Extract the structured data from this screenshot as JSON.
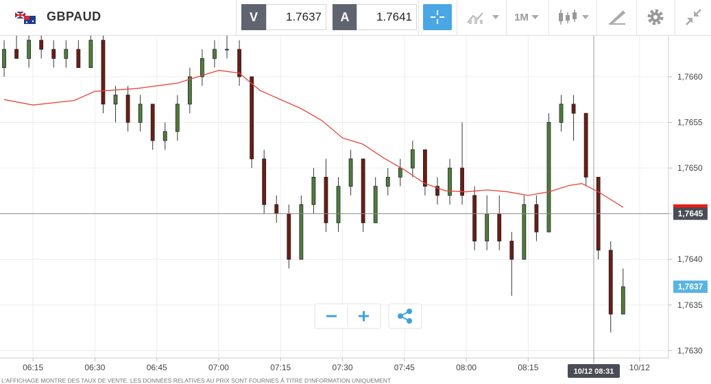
{
  "header": {
    "symbol": "GBPAUD",
    "bid_label": "V",
    "bid": "1.7637",
    "ask_label": "A",
    "ask": "1.7641",
    "timeframe": "1M"
  },
  "chart_data": {
    "type": "candlestick",
    "x": [
      "06:08",
      "06:11",
      "06:14",
      "06:17",
      "06:20",
      "06:23",
      "06:26",
      "06:29",
      "06:32",
      "06:35",
      "06:38",
      "06:41",
      "06:44",
      "06:47",
      "06:50",
      "06:53",
      "06:56",
      "06:59",
      "07:02",
      "07:05",
      "07:08",
      "07:11",
      "07:14",
      "07:17",
      "07:20",
      "07:23",
      "07:26",
      "07:29",
      "07:32",
      "07:35",
      "07:38",
      "07:41",
      "07:44",
      "07:47",
      "07:50",
      "07:53",
      "07:56",
      "07:59",
      "08:02",
      "08:05",
      "08:08",
      "08:11",
      "08:14",
      "08:17",
      "08:20",
      "08:23",
      "08:26",
      "08:29",
      "08:32",
      "08:35",
      "08:38"
    ],
    "open": [
      1.7661,
      1.7663,
      1.7662,
      1.7664,
      1.7663,
      1.7662,
      1.7663,
      1.7661,
      1.7664,
      1.7657,
      1.7658,
      1.7655,
      1.7657,
      1.7653,
      1.7654,
      1.7657,
      1.766,
      1.7662,
      1.7663,
      1.7663,
      1.766,
      1.7651,
      1.7646,
      1.7645,
      1.764,
      1.7646,
      1.7649,
      1.7644,
      1.7648,
      1.7651,
      1.7644,
      1.7648,
      1.7649,
      1.765,
      1.7652,
      1.7648,
      1.7647,
      1.765,
      1.7647,
      1.7642,
      1.7645,
      1.7642,
      1.764,
      1.7646,
      1.7643,
      1.7655,
      1.7657,
      1.7656,
      1.7649,
      1.7641,
      1.7634
    ],
    "high": [
      1.7664,
      1.7665,
      1.7665,
      1.7665,
      1.7664,
      1.7664,
      1.7664,
      1.7665,
      1.7665,
      1.7659,
      1.7659,
      1.7658,
      1.7657,
      1.7655,
      1.7658,
      1.7661,
      1.7663,
      1.7664,
      1.7665,
      1.7664,
      1.766,
      1.7652,
      1.7647,
      1.7646,
      1.7647,
      1.765,
      1.7651,
      1.7649,
      1.7652,
      1.7651,
      1.7649,
      1.765,
      1.7651,
      1.7653,
      1.7652,
      1.7649,
      1.7651,
      1.7655,
      1.7648,
      1.7647,
      1.7647,
      1.7643,
      1.7647,
      1.7647,
      1.7656,
      1.7658,
      1.7658,
      1.7656,
      1.7649,
      1.7642,
      1.7639
    ],
    "low": [
      1.766,
      1.7662,
      1.7661,
      1.7662,
      1.7661,
      1.7661,
      1.7661,
      1.7661,
      1.7656,
      1.7655,
      1.7654,
      1.7654,
      1.7652,
      1.7652,
      1.7653,
      1.7656,
      1.7659,
      1.7661,
      1.7662,
      1.7659,
      1.765,
      1.7645,
      1.7644,
      1.7639,
      1.764,
      1.7645,
      1.7643,
      1.7643,
      1.7647,
      1.7643,
      1.7644,
      1.7647,
      1.7648,
      1.7649,
      1.7647,
      1.7646,
      1.7646,
      1.7646,
      1.7641,
      1.7641,
      1.7641,
      1.7636,
      1.764,
      1.7642,
      1.7643,
      1.7654,
      1.7653,
      1.7648,
      1.764,
      1.7632,
      1.7634
    ],
    "close": [
      1.7663,
      1.7662,
      1.7664,
      1.7663,
      1.7662,
      1.7663,
      1.7661,
      1.7664,
      1.7657,
      1.7658,
      1.7655,
      1.7657,
      1.7653,
      1.7654,
      1.7657,
      1.766,
      1.7662,
      1.7663,
      1.7663,
      1.766,
      1.7651,
      1.7646,
      1.7645,
      1.764,
      1.7646,
      1.7649,
      1.7644,
      1.7648,
      1.7651,
      1.7644,
      1.7648,
      1.7649,
      1.765,
      1.7652,
      1.7648,
      1.7647,
      1.765,
      1.7647,
      1.7642,
      1.7645,
      1.7642,
      1.764,
      1.7646,
      1.7643,
      1.7655,
      1.7657,
      1.7656,
      1.7649,
      1.7641,
      1.7634,
      1.7637
    ],
    "up_color": "#4f7d3c",
    "down_color": "#6b1d16",
    "moving_average": {
      "color": "#e8453c",
      "x": [
        "06:08",
        "06:15",
        "06:25",
        "06:30",
        "06:40",
        "06:50",
        "06:55",
        "07:00",
        "07:05",
        "07:10",
        "07:20",
        "07:25",
        "07:30",
        "07:35",
        "07:40",
        "07:45",
        "07:50",
        "07:55",
        "08:00",
        "08:05",
        "08:10",
        "08:15",
        "08:20",
        "08:25",
        "08:28",
        "08:32",
        "08:38"
      ],
      "values": [
        1.76575,
        1.76569,
        1.76574,
        1.76584,
        1.76587,
        1.76593,
        1.766,
        1.76607,
        1.76604,
        1.76585,
        1.76565,
        1.76552,
        1.76533,
        1.76526,
        1.76511,
        1.76498,
        1.76483,
        1.76475,
        1.76474,
        1.76476,
        1.76474,
        1.7647,
        1.76474,
        1.76481,
        1.76483,
        1.76474,
        1.76457
      ]
    },
    "xlim": [
      "06:07",
      "08:49"
    ],
    "xticks": [
      "06:15",
      "06:30",
      "06:45",
      "07:00",
      "07:15",
      "07:30",
      "07:45",
      "08:00",
      "08:15",
      {
        "value": "08:42",
        "label": "10/12"
      }
    ],
    "ylim": [
      1.76292,
      1.76645
    ],
    "yticks": [
      {
        "value": 1.763,
        "label": "1,7630"
      },
      {
        "value": 1.7635,
        "label": "1,7635"
      },
      {
        "value": 1.764,
        "label": "1,7640"
      },
      {
        "value": 1.7645,
        "label": "1,7645"
      },
      {
        "value": 1.765,
        "label": "1,7650"
      },
      {
        "value": 1.7655,
        "label": "1,7655"
      },
      {
        "value": 1.766,
        "label": "1,7660"
      }
    ],
    "grid": true,
    "crosshair": {
      "label": "10/12 08:31",
      "price": {
        "value": 1.7645,
        "label": "1,7645"
      }
    },
    "last_price": {
      "value": 1.7637,
      "label": "1,7637"
    }
  },
  "footer": {
    "disclaimer": "L'AFFICHAGE MONTRE DES TAUX DE VENTE. LES DONNÉES RELATIVES AU PRIX SONT FOURNIES À TITRE D'INFORMATION UNIQUEMENT"
  }
}
